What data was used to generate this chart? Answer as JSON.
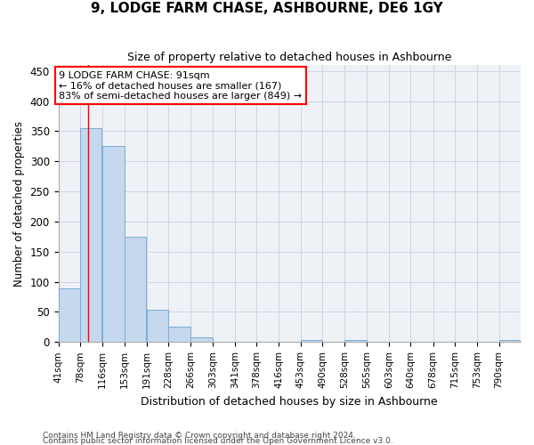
{
  "title": "9, LODGE FARM CHASE, ASHBOURNE, DE6 1GY",
  "subtitle": "Size of property relative to detached houses in Ashbourne",
  "xlabel": "Distribution of detached houses by size in Ashbourne",
  "ylabel": "Number of detached properties",
  "bar_color": "#c5d8ed",
  "bar_edge_color": "#7aadd4",
  "background_color": "#eef2f7",
  "grid_color": "#c8d0dc",
  "bins": [
    41,
    78,
    116,
    153,
    191,
    228,
    266,
    303,
    341,
    378,
    416,
    453,
    490,
    528,
    565,
    603,
    640,
    678,
    715,
    753,
    790
  ],
  "bin_labels": [
    "41sqm",
    "78sqm",
    "116sqm",
    "153sqm",
    "191sqm",
    "228sqm",
    "266sqm",
    "303sqm",
    "341sqm",
    "378sqm",
    "416sqm",
    "453sqm",
    "490sqm",
    "528sqm",
    "565sqm",
    "603sqm",
    "640sqm",
    "678sqm",
    "715sqm",
    "753sqm",
    "790sqm"
  ],
  "values": [
    89,
    355,
    325,
    175,
    53,
    25,
    8,
    0,
    0,
    0,
    0,
    3,
    0,
    3,
    0,
    0,
    0,
    0,
    0,
    0,
    3
  ],
  "red_line_x": 91,
  "annotation_title": "9 LODGE FARM CHASE: 91sqm",
  "annotation_line1": "← 16% of detached houses are smaller (167)",
  "annotation_line2": "83% of semi-detached houses are larger (849) →",
  "ylim": [
    0,
    460
  ],
  "yticks": [
    0,
    50,
    100,
    150,
    200,
    250,
    300,
    350,
    400,
    450
  ],
  "bin_width": 37,
  "footer_line1": "Contains HM Land Registry data © Crown copyright and database right 2024.",
  "footer_line2": "Contains public sector information licensed under the Open Government Licence v3.0."
}
